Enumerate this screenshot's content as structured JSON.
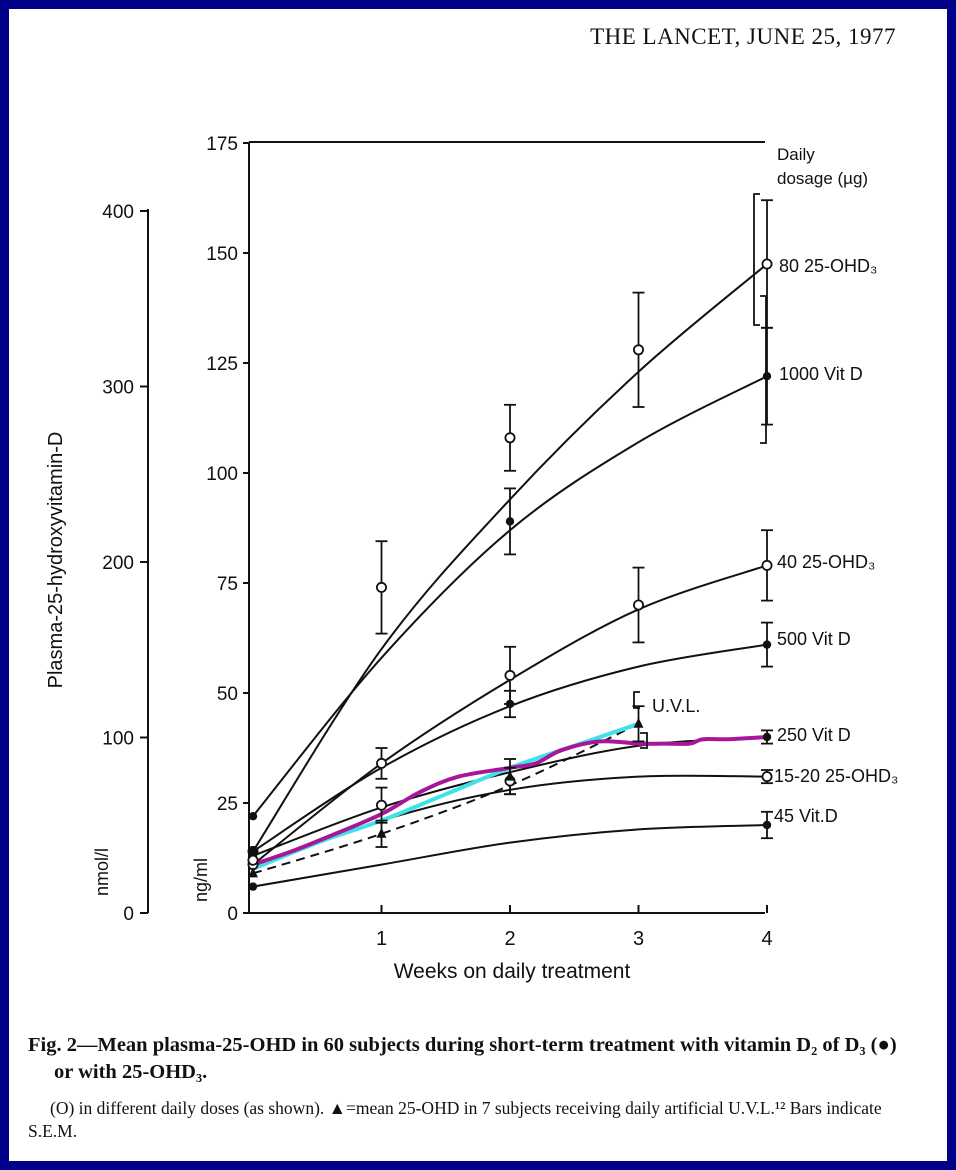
{
  "page": {
    "header": "THE LANCET, JUNE 25, 1977",
    "caption_main": "Fig. 2—Mean plasma-25-OHD in 60 subjects during short-term treatment with vitamin D₂ of D₃ (●) or with 25-OHD₃.",
    "caption_sub": "(O) in different daily doses (as shown). ▲=mean 25-OHD in 7 subjects receiving daily artificial U.V.L.¹² Bars indicate S.E.M."
  },
  "chart_data": {
    "type": "line",
    "xlabel": "Weeks on daily treatment",
    "ylabel": "Plasma-25-hydroxyvitamin-D",
    "y_units_left": "nmol/l",
    "y_units_right": "ng/ml",
    "legend_title": "Daily dosage (µg)",
    "x_ticks": [
      "1",
      "2",
      "3",
      "4"
    ],
    "y_ticks_ngml": [
      "0",
      "25",
      "50",
      "75",
      "100",
      "125",
      "150",
      "175"
    ],
    "y_ticks_nmol": [
      "0",
      "100",
      "200",
      "300",
      "400"
    ],
    "xlim": [
      0,
      4
    ],
    "ylim": [
      0,
      175
    ],
    "series": [
      {
        "name": "80 25-OHD₃",
        "marker": "open",
        "points": [
          [
            0,
            14
          ],
          [
            1,
            74
          ],
          [
            2,
            108
          ],
          [
            3,
            128
          ],
          [
            4,
            147.5
          ]
        ],
        "curve": [
          [
            0,
            14
          ],
          [
            1,
            60
          ],
          [
            2,
            94
          ],
          [
            3,
            123
          ],
          [
            4,
            147.5
          ]
        ],
        "err": [
          [
            1,
            10.5
          ],
          [
            2,
            7.5
          ],
          [
            3,
            13
          ],
          [
            4,
            14.5
          ]
        ]
      },
      {
        "name": "1000 Vit D",
        "marker": "filled",
        "points": [
          [
            0,
            22
          ],
          [
            2,
            89
          ],
          [
            4,
            122
          ]
        ],
        "curve": [
          [
            0,
            22
          ],
          [
            1,
            58
          ],
          [
            2,
            87
          ],
          [
            3,
            107
          ],
          [
            4,
            122
          ]
        ],
        "err": [
          [
            2,
            7.5
          ],
          [
            4,
            11
          ]
        ]
      },
      {
        "name": "40 25-OHD₃",
        "marker": "open",
        "points": [
          [
            0,
            11
          ],
          [
            1,
            34
          ],
          [
            2,
            54
          ],
          [
            3,
            70
          ],
          [
            4,
            79
          ]
        ],
        "curve": [
          [
            0,
            11
          ],
          [
            1,
            34
          ],
          [
            2,
            53
          ],
          [
            3,
            69
          ],
          [
            4,
            79
          ]
        ],
        "err": [
          [
            1,
            3.5
          ],
          [
            2,
            6.5
          ],
          [
            3,
            8.5
          ],
          [
            4,
            8
          ]
        ]
      },
      {
        "name": "500 Vit D",
        "marker": "filled",
        "points": [
          [
            0,
            14
          ],
          [
            2,
            47.5
          ],
          [
            4,
            61
          ]
        ],
        "curve": [
          [
            0,
            14
          ],
          [
            1,
            33
          ],
          [
            2,
            47
          ],
          [
            3,
            56
          ],
          [
            4,
            61
          ]
        ],
        "err": [
          [
            2,
            3
          ],
          [
            4,
            5
          ]
        ]
      },
      {
        "name": "250 Vit D",
        "marker": "filled",
        "points": [
          [
            0,
            13
          ],
          [
            4,
            40
          ]
        ],
        "curve": [
          [
            0,
            13
          ],
          [
            1,
            24
          ],
          [
            2,
            32
          ],
          [
            3,
            38
          ],
          [
            4,
            40
          ]
        ],
        "err": [
          [
            4,
            1.5
          ]
        ]
      },
      {
        "name": "15-20 25-OHD₃",
        "marker": "open",
        "points": [
          [
            0,
            12
          ],
          [
            1,
            24.5
          ],
          [
            2,
            30
          ],
          [
            4,
            31
          ]
        ],
        "curve": [
          [
            0,
            10
          ],
          [
            1,
            21
          ],
          [
            2,
            28
          ],
          [
            3,
            31
          ],
          [
            4,
            31
          ]
        ],
        "err": [
          [
            1,
            4
          ],
          [
            2,
            3
          ],
          [
            4,
            1.5
          ]
        ]
      },
      {
        "name": "45 Vit.D",
        "marker": "filled",
        "points": [
          [
            0,
            6
          ],
          [
            4,
            20
          ]
        ],
        "curve": [
          [
            0,
            6
          ],
          [
            1,
            11
          ],
          [
            2,
            16
          ],
          [
            3,
            19
          ],
          [
            4,
            20
          ]
        ],
        "err": [
          [
            4,
            3
          ]
        ]
      },
      {
        "name": "U.V.L.",
        "marker": "triangle",
        "style": "dashed",
        "points": [
          [
            0,
            9
          ],
          [
            1,
            18
          ],
          [
            2,
            31
          ],
          [
            3,
            43
          ]
        ],
        "curve": [
          [
            0,
            9
          ],
          [
            1,
            18
          ],
          [
            2,
            29
          ],
          [
            3,
            43
          ]
        ],
        "err": [
          [
            1,
            3
          ],
          [
            2,
            4
          ],
          [
            3,
            4
          ]
        ]
      }
    ],
    "overlays": [
      {
        "color": "#3fe3e7",
        "points": [
          [
            0,
            10
          ],
          [
            0.5,
            16
          ],
          [
            1,
            21
          ],
          [
            1.5,
            27
          ],
          [
            2,
            33
          ],
          [
            2.5,
            38
          ],
          [
            3,
            43
          ]
        ]
      },
      {
        "color": "#a8169a",
        "points": [
          [
            0,
            11
          ],
          [
            0.3,
            14
          ],
          [
            0.6,
            17.5
          ],
          [
            1,
            22.5
          ],
          [
            1.3,
            27.5
          ],
          [
            1.6,
            31
          ],
          [
            2,
            33
          ],
          [
            2.2,
            34
          ],
          [
            2.4,
            37
          ],
          [
            2.7,
            39
          ],
          [
            3,
            38.5
          ],
          [
            3.2,
            38.5
          ],
          [
            3.4,
            38.5
          ],
          [
            3.5,
            39.5
          ],
          [
            3.7,
            39.5
          ],
          [
            4,
            40
          ]
        ]
      }
    ]
  }
}
